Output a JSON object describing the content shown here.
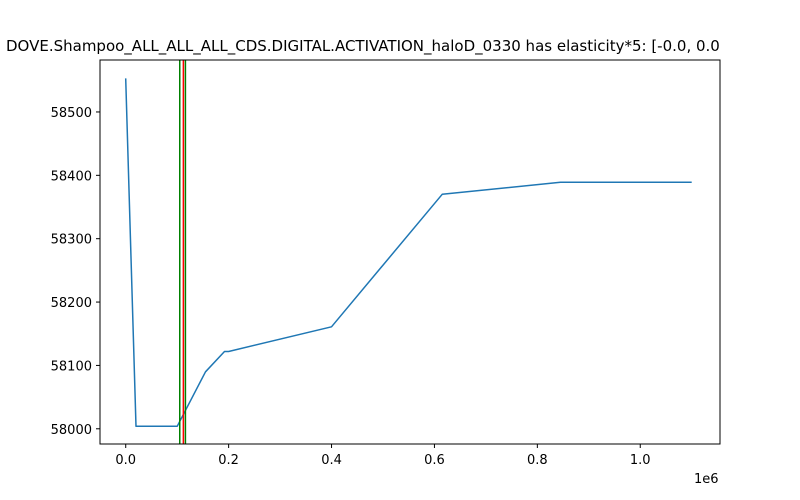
{
  "chart_data": {
    "type": "line",
    "title": "DOVE.Shampoo_ALL_ALL_ALL_CDS.DIGITAL.ACTIVATION_haloD_0330 has elasticity*5:   [-0.0, 0.0",
    "xlabel": "",
    "ylabel": "",
    "x_offset_label": "1e6",
    "xlim": [
      -50000,
      1155000
    ],
    "ylim": [
      57976,
      58582
    ],
    "x_ticks": [
      0,
      200000,
      400000,
      600000,
      800000,
      1000000
    ],
    "x_tick_labels": [
      "0.0",
      "0.2",
      "0.4",
      "0.6",
      "0.8",
      "1.0"
    ],
    "y_ticks": [
      58000,
      58100,
      58200,
      58300,
      58400,
      58500
    ],
    "y_tick_labels": [
      "58000",
      "58100",
      "58200",
      "58300",
      "58400",
      "58500"
    ],
    "grid": false,
    "series": [
      {
        "color": "#1f77b4",
        "x": [
          0,
          20000,
          100000,
          155000,
          192000,
          200000,
          400000,
          615000,
          845000,
          1100000
        ],
        "y": [
          58553,
          58004,
          58004,
          58090,
          58122,
          58122,
          58161,
          58370,
          58389,
          58389
        ]
      }
    ],
    "vlines": [
      {
        "x": 105000,
        "color": "#008000"
      },
      {
        "x": 112000,
        "color": "#ff0000"
      },
      {
        "x": 116000,
        "color": "#008000"
      }
    ]
  }
}
